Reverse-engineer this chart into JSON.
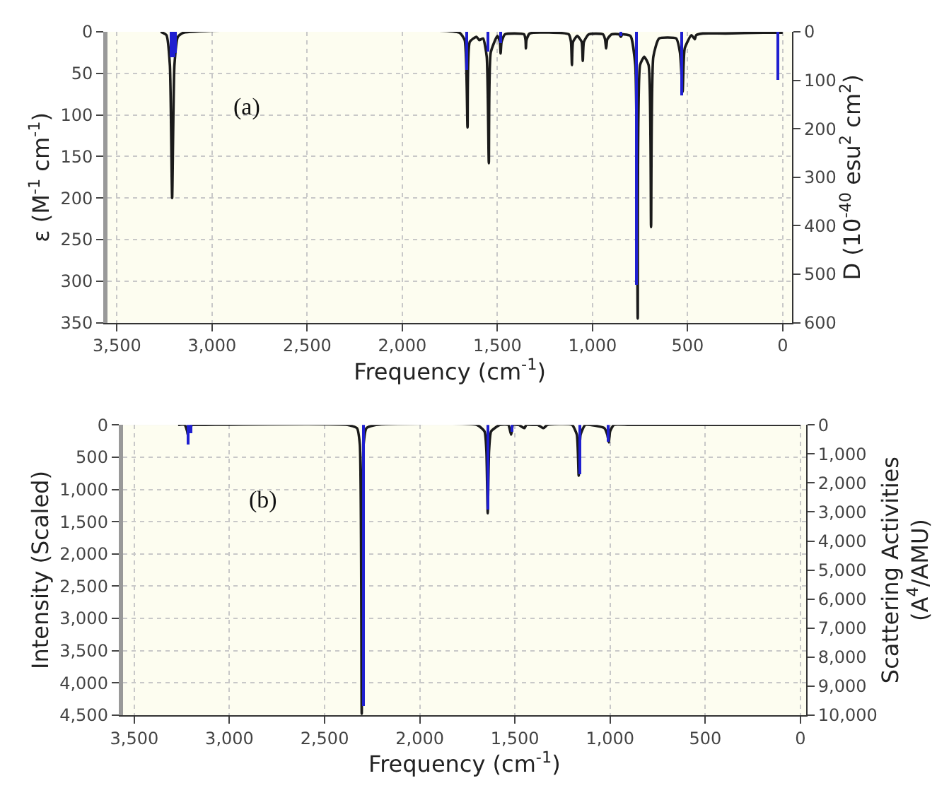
{
  "chart_data": [
    {
      "type": "line",
      "xlabel": "Frequency (cm$^{-1}$)",
      "ylabel": "ε (M$^{-1}$ cm$^{-1}$)",
      "y2label": "D (10$^{-40}$ esu$^{2}$ cm$^{2}$)",
      "annotations": [
        "(a)"
      ],
      "xlim": [
        3550,
        -50
      ],
      "xticks": [
        {
          "value": 3500,
          "label": "3,500"
        },
        {
          "value": 3000,
          "label": "3,000"
        },
        {
          "value": 2500,
          "label": "2,500"
        },
        {
          "value": 2000,
          "label": "2,000"
        },
        {
          "value": 1500,
          "label": "1,500"
        },
        {
          "value": 1000,
          "label": "1,000"
        },
        500,
        0
      ],
      "ylim": [
        350,
        0
      ],
      "yticks": [
        0,
        50,
        100,
        150,
        200,
        250,
        300,
        350
      ],
      "y2lim": [
        600,
        0
      ],
      "y2ticks": [
        0,
        100,
        200,
        300,
        400,
        500,
        600
      ],
      "grid": true,
      "series": [
        {
          "color": "#1a1a1a",
          "x": [
            3270,
            3240,
            3222,
            3210,
            3198,
            3180,
            3150,
            1700,
            1672,
            1657,
            1645,
            1610,
            1595,
            1575,
            1556,
            1545,
            1535,
            1500,
            1487,
            1483,
            1478,
            1460,
            1360,
            1352,
            1350,
            1347,
            1330,
            1125,
            1113,
            1108,
            1102,
            1080,
            1057,
            1051,
            1045,
            1020,
            945,
            934,
            928,
            922,
            900,
            860,
            851,
            843,
            800,
            775,
            762,
            750,
            728,
            705,
            692,
            680,
            650,
            560,
            540,
            526,
            515,
            480,
            462,
            455,
            420,
            300,
            100,
            0
          ],
          "values": [
            0,
            4,
            40,
            200,
            40,
            6,
            1,
            1,
            10,
            115,
            12,
            6,
            10,
            8,
            30,
            158,
            25,
            5,
            12,
            26,
            12,
            3,
            3,
            10,
            20,
            10,
            2,
            3,
            12,
            40,
            12,
            5,
            12,
            35,
            12,
            3,
            3,
            9,
            20,
            9,
            3,
            3,
            6,
            3,
            5,
            40,
            345,
            40,
            30,
            40,
            235,
            30,
            8,
            8,
            25,
            72,
            20,
            4,
            9,
            4,
            2,
            2,
            1,
            1
          ]
        },
        {
          "type": "bar",
          "axis": "y2",
          "color": "#1f1fd0",
          "x": [
            3215,
            3200,
            3190,
            1660,
            1552,
            1485,
            851,
            768,
            530,
            26
          ],
          "values": [
            52,
            52,
            45,
            80,
            40,
            22,
            8,
            521,
            130,
            99
          ]
        }
      ]
    },
    {
      "type": "line",
      "xlabel": "Frequency (cm$^{-1}$)",
      "ylabel": "Intensity (Scaled)",
      "y2label": "Scattering Activities\n(A$^{4}$/AMU)",
      "annotations": [
        "(b)"
      ],
      "xlim": [
        3560,
        -30
      ],
      "xticks": [
        {
          "value": 3500,
          "label": "3,500"
        },
        {
          "value": 3000,
          "label": "3,000"
        },
        {
          "value": 2500,
          "label": "2,500"
        },
        {
          "value": 2000,
          "label": "2,000"
        },
        {
          "value": 1500,
          "label": "1,500"
        },
        {
          "value": 1000,
          "label": "1,000"
        },
        500,
        0
      ],
      "ylim": [
        4500,
        0
      ],
      "yticks": [
        0,
        500,
        {
          "value": 1000,
          "label": "1,000"
        },
        {
          "value": 1500,
          "label": "1,500"
        },
        {
          "value": 2000,
          "label": "2,000"
        },
        {
          "value": 2500,
          "label": "2,500"
        },
        {
          "value": 3000,
          "label": "3,000"
        },
        {
          "value": 3500,
          "label": "3,500"
        },
        {
          "value": 4000,
          "label": "4,000"
        },
        {
          "value": 4500,
          "label": "4,500"
        }
      ],
      "y2lim": [
        10000,
        0
      ],
      "y2ticks": [
        0,
        {
          "value": 1000,
          "label": "1,000"
        },
        {
          "value": 2000,
          "label": "2,000"
        },
        {
          "value": 3000,
          "label": "3,000"
        },
        {
          "value": 4000,
          "label": "4,000"
        },
        {
          "value": 5000,
          "label": "5,000"
        },
        {
          "value": 6000,
          "label": "6,000"
        },
        {
          "value": 7000,
          "label": "7,000"
        },
        {
          "value": 8000,
          "label": "8,000"
        },
        {
          "value": 9000,
          "label": "9,000"
        },
        {
          "value": 10000,
          "label": "10,000"
        }
      ],
      "grid": true,
      "series": [
        {
          "color": "#1a1a1a",
          "x": [
            3270,
            3235,
            3222,
            3219,
            3212,
            3195,
            3180,
            3150,
            2380,
            2330,
            2315,
            2305,
            2295,
            2280,
            2230,
            1700,
            1660,
            1650,
            1643,
            1636,
            1625,
            1580,
            1535,
            1520,
            1510,
            1480,
            1450,
            1440,
            1400,
            1380,
            1350,
            1330,
            1200,
            1175,
            1165,
            1155,
            1130,
            1030,
            1015,
            1007,
            1000,
            980,
            900,
            500,
            0
          ],
          "values": [
            0,
            0,
            100,
            150,
            50,
            0,
            0,
            0,
            0,
            50,
            300,
            4480,
            300,
            50,
            0,
            0,
            100,
            400,
            1370,
            400,
            100,
            0,
            0,
            150,
            0,
            0,
            50,
            0,
            0,
            0,
            50,
            0,
            0,
            150,
            790,
            150,
            0,
            50,
            150,
            270,
            100,
            0,
            0,
            0,
            0
          ]
        },
        {
          "type": "bar",
          "axis": "y2",
          "color": "#1f1fd0",
          "x": [
            3219,
            3200,
            2300,
            1640,
            1520,
            1162,
            1010
          ],
          "values": [
            670,
            300,
            9700,
            2900,
            250,
            1700,
            600
          ]
        }
      ]
    }
  ]
}
